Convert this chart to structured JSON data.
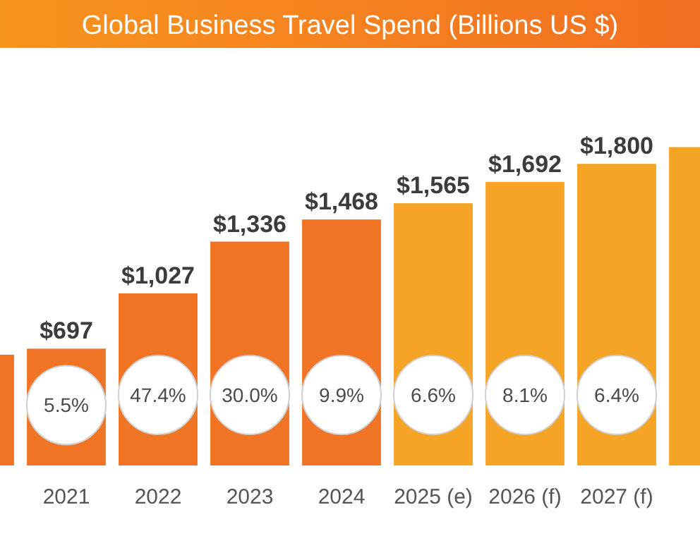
{
  "chart_data": {
    "type": "bar",
    "title": "Global Business Travel Spend (Billions US $)",
    "categories": [
      null,
      "2021",
      "2022",
      "2023",
      "2024",
      "2025 (e)",
      "2026 (f)",
      "2027 (f)",
      null
    ],
    "values": [
      661,
      697,
      1027,
      1336,
      1468,
      1565,
      1692,
      1800,
      1900
    ],
    "colors": [
      "#f07424",
      "#f07424",
      "#f07424",
      "#f07424",
      "#f07424",
      "#f5a425",
      "#f5a425",
      "#f5a425",
      "#f5a425"
    ],
    "value_labels": [
      null,
      "$697",
      "$1,027",
      "$1,336",
      "$1,468",
      "$1,565",
      "$1,692",
      "$1,800",
      null
    ],
    "annotations": [
      "5.5%",
      "47.4%",
      "30.0%",
      "9.9%",
      "6.6%",
      "8.1%",
      "6.4%"
    ]
  }
}
